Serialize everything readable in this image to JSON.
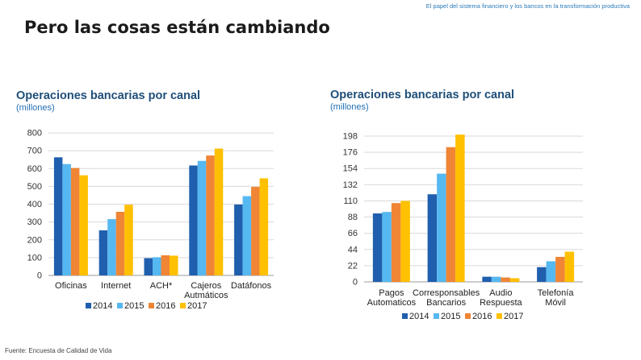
{
  "header": {
    "note": "El papel del sistema financiero y los bancos en la transformación productiva"
  },
  "slide": {
    "title": "Pero las cosas están cambiando",
    "source": "Fuente: Encuesta de Calidad de Vida"
  },
  "colors": {
    "2014": "#1f5fae",
    "2015": "#56b8f0",
    "2016": "#ef8535",
    "2017": "#ffc000",
    "title": "#1f4e79"
  },
  "chart_data": [
    {
      "type": "bar",
      "title": "Operaciones bancarias por canal",
      "subtitle": "(millones)",
      "categories": [
        [
          "Oficinas"
        ],
        [
          "Internet"
        ],
        [
          "ACH*"
        ],
        [
          "Cajeros",
          "Autmáticos"
        ],
        [
          "Datáfonos"
        ]
      ],
      "series": [
        {
          "name": "2014",
          "values": [
            663,
            253,
            97,
            617,
            398
          ]
        },
        {
          "name": "2015",
          "values": [
            625,
            316,
            102,
            643,
            445
          ]
        },
        {
          "name": "2016",
          "values": [
            603,
            357,
            113,
            673,
            497
          ]
        },
        {
          "name": "2017",
          "values": [
            562,
            397,
            111,
            712,
            545
          ]
        }
      ],
      "ylim": [
        0,
        800
      ],
      "yticks": [
        0,
        100,
        200,
        300,
        400,
        500,
        600,
        700,
        800
      ],
      "grid": true,
      "legend": "bottom"
    },
    {
      "type": "bar",
      "title": "Operaciones bancarias por canal",
      "subtitle": "(millones)",
      "categories": [
        [
          "Pagos",
          "Automaticos"
        ],
        [
          "Corresponsables",
          "Bancarios"
        ],
        [
          "Audio",
          "Respuesta"
        ],
        [
          "Telefonía",
          "Móvil"
        ]
      ],
      "series": [
        {
          "name": "2014",
          "values": [
            93,
            119,
            7,
            20
          ]
        },
        {
          "name": "2015",
          "values": [
            95,
            147,
            7,
            28
          ]
        },
        {
          "name": "2016",
          "values": [
            107,
            183,
            6,
            34
          ]
        },
        {
          "name": "2017",
          "values": [
            110,
            200,
            5,
            41
          ]
        }
      ],
      "ylim": [
        0,
        198
      ],
      "yticks": [
        0,
        22,
        44,
        66,
        88,
        110,
        132,
        154,
        176,
        198
      ],
      "grid": true,
      "legend": "bottom"
    }
  ]
}
